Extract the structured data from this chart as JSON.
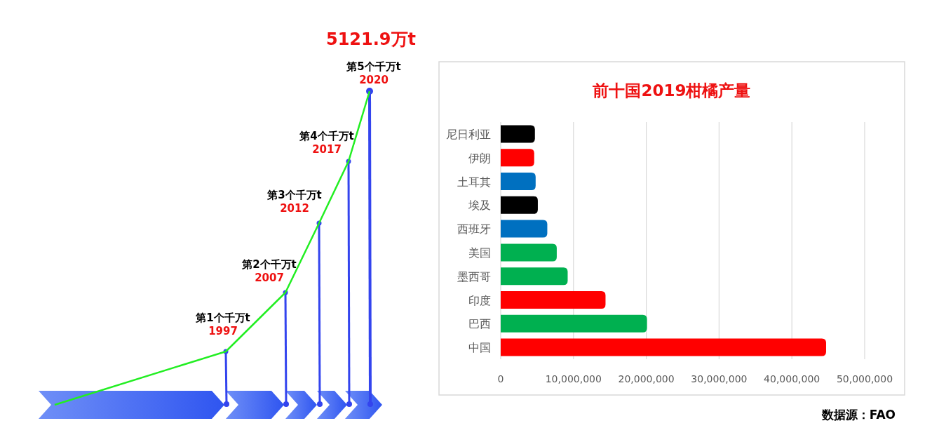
{
  "chart_data": [
    {
      "type": "other",
      "title": "5121.9万t",
      "annotations": [
        "第1个千万t",
        "1997",
        "第2个千万t",
        "2007",
        "第3个千万t",
        "2012",
        "第4个千万t",
        "2017",
        "第5个千万t",
        "2020"
      ]
    },
    {
      "type": "bar",
      "orientation": "horizontal",
      "title": "前十国2019柑橘产量",
      "categories": [
        "尼日利亚",
        "伊朗",
        "土耳其",
        "埃及",
        "西班牙",
        "美国",
        "墨西哥",
        "印度",
        "巴西",
        "中国"
      ],
      "values": [
        4700000,
        4600000,
        4800000,
        5100000,
        6400000,
        7700000,
        9200000,
        14400000,
        20100000,
        44700000
      ],
      "colors": [
        "#000000",
        "#ff0000",
        "#0070c0",
        "#000000",
        "#0070c0",
        "#00b050",
        "#00b050",
        "#ff0000",
        "#00b050",
        "#ff0000"
      ],
      "xlim": [
        0,
        50000000
      ],
      "xticks": [
        0,
        {
          "value": 10000000,
          "label": "10,000,000"
        },
        {
          "value": 20000000,
          "label": "20,000,000"
        },
        {
          "value": 30000000,
          "label": "30,000,000"
        },
        {
          "value": 40000000,
          "label": "40,000,000"
        },
        {
          "value": 50000000,
          "label": "50,000,000"
        }
      ],
      "grid": "x",
      "annotations": [
        "数据源：FAO"
      ]
    }
  ]
}
